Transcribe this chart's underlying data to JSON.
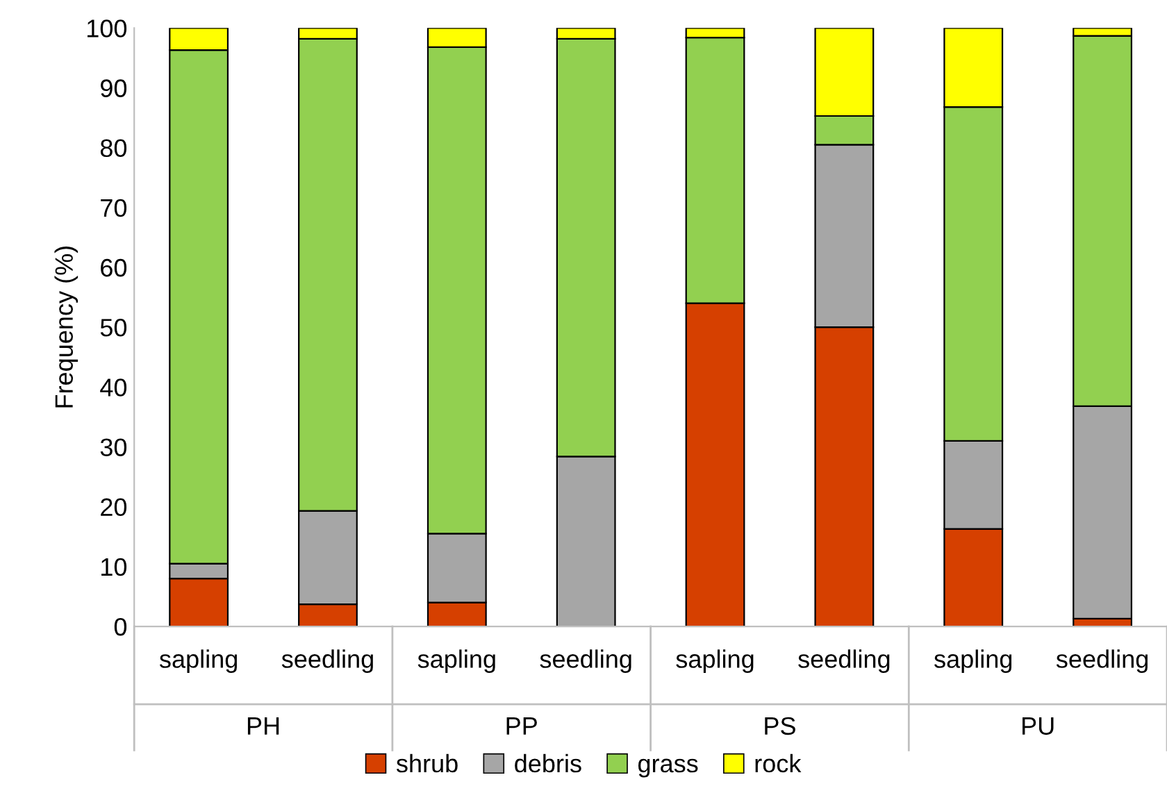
{
  "chart_data": {
    "type": "bar",
    "stacked": true,
    "ylabel": "Frequency (%)",
    "categories": [
      "sapling",
      "seedling",
      "sapling",
      "seedling",
      "sapling",
      "seedling",
      "sapling",
      "seedling"
    ],
    "annotations": [
      "PH",
      "PP",
      "PS",
      "PU"
    ],
    "series": [
      {
        "name": "shrub",
        "color": "#d64000",
        "values": [
          8,
          3.7,
          4,
          null,
          54,
          50,
          16.3,
          1.3
        ]
      },
      {
        "name": "debris",
        "color": "#a6a6a6",
        "values": [
          2.5,
          15.6,
          11.5,
          28.4,
          null,
          30.5,
          14.7,
          35.5
        ]
      },
      {
        "name": "grass",
        "color": "#92d050",
        "values": [
          85.8,
          78.9,
          81.3,
          69.8,
          44.4,
          4.8,
          55.8,
          61.9
        ]
      },
      {
        "name": "rock",
        "color": "#ffff00",
        "values": [
          3.7,
          1.8,
          3.2,
          1.8,
          1.6,
          14.7,
          13.2,
          1.3
        ]
      }
    ],
    "ylim": [
      0,
      100
    ],
    "yticks": [
      0,
      10,
      20,
      30,
      40,
      50,
      60,
      70,
      80,
      90,
      100
    ],
    "grid": false,
    "legend": "bottom"
  }
}
